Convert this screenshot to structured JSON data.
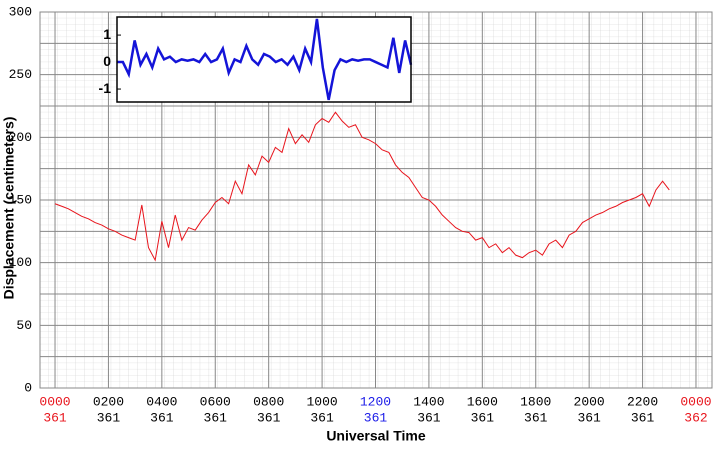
{
  "chart_data": [
    {
      "type": "line",
      "xlabel": "Universal Time",
      "ylabel": "Displacement (centimeters)",
      "xlim": [
        -0.5625,
        24.6
      ],
      "ylim": [
        0,
        300
      ],
      "xticks": [
        {
          "value": 0,
          "label": "0000"
        },
        {
          "value": 2,
          "label": "0200"
        },
        {
          "value": 4,
          "label": "0400"
        },
        {
          "value": 6,
          "label": "0600"
        },
        {
          "value": 8,
          "label": "0800"
        },
        {
          "value": 10,
          "label": "1000"
        },
        {
          "value": 12,
          "label": "1200"
        },
        {
          "value": 14,
          "label": "1400"
        },
        {
          "value": 16,
          "label": "1600"
        },
        {
          "value": 18,
          "label": "1800"
        },
        {
          "value": 20,
          "label": "2000"
        },
        {
          "value": 22,
          "label": "2200"
        },
        {
          "value": 24,
          "label": "0000"
        }
      ],
      "x_tick_sublabels": [
        "361",
        "361",
        "361",
        "361",
        "361",
        "361",
        "361",
        "361",
        "361",
        "361",
        "361",
        "361",
        "362"
      ],
      "x_tick_colors": [
        "#e8141c",
        "#000000",
        "#000000",
        "#000000",
        "#000000",
        "#000000",
        "#1a1ae8",
        "#000000",
        "#000000",
        "#000000",
        "#000000",
        "#000000",
        "#e8141c"
      ],
      "yticks": [
        0,
        50,
        100,
        150,
        200,
        250,
        300
      ],
      "y_gridlines": [
        25,
        75,
        125,
        175,
        225,
        275
      ],
      "grid": true,
      "series": [
        {
          "color": "#e8141c",
          "x": [
            0,
            0.25,
            0.5,
            0.75,
            1,
            1.25,
            1.5,
            1.75,
            2,
            2.25,
            2.5,
            2.75,
            3,
            3.25,
            3.5,
            3.75,
            4,
            4.25,
            4.5,
            4.75,
            5,
            5.25,
            5.5,
            5.75,
            6,
            6.25,
            6.5,
            6.75,
            7,
            7.25,
            7.5,
            7.75,
            8,
            8.25,
            8.5,
            8.75,
            9,
            9.25,
            9.5,
            9.75,
            10,
            10.25,
            10.5,
            10.75,
            11,
            11.25,
            11.5,
            11.75,
            12,
            12.25,
            12.5,
            12.75,
            13,
            13.25,
            13.5,
            13.75,
            14,
            14.25,
            14.5,
            14.75,
            15,
            15.25,
            15.5,
            15.75,
            16,
            16.25,
            16.5,
            16.75,
            17,
            17.25,
            17.5,
            17.75,
            18,
            18.25,
            18.5,
            18.75,
            19,
            19.25,
            19.5,
            19.75,
            20,
            20.25,
            20.5,
            20.75,
            21,
            21.25,
            21.5,
            21.75,
            22,
            22.25,
            22.5,
            22.75,
            23
          ],
          "values": [
            147,
            145,
            143,
            140,
            137,
            135,
            132,
            130,
            127,
            125,
            122,
            120,
            118,
            146,
            112,
            102,
            133,
            112,
            138,
            118,
            128,
            126,
            134,
            140,
            148,
            152,
            147,
            165,
            155,
            178,
            170,
            185,
            180,
            192,
            188,
            207,
            195,
            202,
            196,
            210,
            215,
            212,
            220,
            213,
            208,
            210,
            200,
            198,
            195,
            190,
            188,
            178,
            172,
            168,
            160,
            152,
            150,
            145,
            138,
            133,
            128,
            125,
            124,
            118,
            120,
            112,
            115,
            108,
            112,
            106,
            104,
            108,
            110,
            106,
            115,
            118,
            112,
            122,
            125,
            132,
            135,
            138,
            140,
            143,
            145,
            148,
            150,
            152,
            155,
            145,
            158,
            165,
            158
          ]
        }
      ]
    },
    {
      "type": "line",
      "xlim": [
        0,
        50
      ],
      "ylim": [
        -1.48,
        1.67
      ],
      "yticks": [
        1,
        0,
        -1
      ],
      "series": [
        {
          "color": "#1414d8",
          "x": [
            0,
            1,
            2,
            3,
            4,
            5,
            6,
            7,
            8,
            9,
            10,
            11,
            12,
            13,
            14,
            15,
            16,
            17,
            18,
            19,
            20,
            21,
            22,
            23,
            24,
            25,
            26,
            27,
            28,
            29,
            30,
            31,
            32,
            33,
            34,
            35,
            36,
            37,
            38,
            39,
            40,
            41,
            42,
            43,
            44,
            45,
            46,
            47,
            48,
            49,
            50
          ],
          "values": [
            0,
            0,
            -0.45,
            0.8,
            -0.1,
            0.3,
            -0.2,
            0.5,
            0.1,
            0.2,
            0,
            0.1,
            0.05,
            0.1,
            0,
            0.3,
            0,
            0.1,
            0.5,
            -0.4,
            0.1,
            0,
            0.6,
            0.1,
            -0.1,
            0.3,
            0.2,
            0,
            0.1,
            -0.1,
            0.2,
            -0.3,
            0.5,
            0,
            1.6,
            -0.2,
            -1.4,
            -0.3,
            0.1,
            0,
            0.1,
            0.05,
            0.1,
            0.1,
            0,
            -0.1,
            -0.2,
            0.9,
            -0.4,
            0.8,
            -0.1
          ]
        }
      ]
    }
  ]
}
